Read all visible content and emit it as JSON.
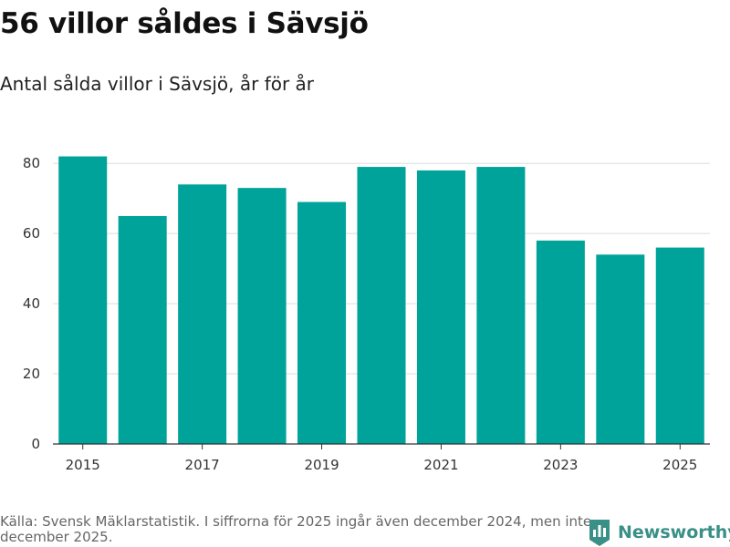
{
  "title": "56 villor såldes i Sävsjö",
  "subtitle": "Antal sålda villor i Sävsjö, år för år",
  "footer": {
    "source": "Källa: Svensk Mäklarstatistik. I siffrorna för 2025 ingår även december 2024, men inte december 2025.",
    "brand": "Newsworthy"
  },
  "colors": {
    "bar": "#00A39A",
    "grid": "#dddddd",
    "brand": "#3a8f87"
  },
  "icons": {
    "brand": "bar-chart-badge-icon"
  },
  "chart_data": {
    "type": "bar",
    "categories": [
      "2015",
      "2016",
      "2017",
      "2018",
      "2019",
      "2020",
      "2021",
      "2022",
      "2023",
      "2024",
      "2025"
    ],
    "values": [
      82,
      65,
      74,
      73,
      69,
      79,
      78,
      79,
      58,
      54,
      56
    ],
    "x_tick_labels": [
      "2015",
      "2017",
      "2019",
      "2021",
      "2023",
      "2025"
    ],
    "y_ticks": [
      0,
      20,
      40,
      60,
      80
    ],
    "ylim": [
      0,
      85
    ],
    "grid": true,
    "legend": "none",
    "title": "56 villor såldes i Sävsjö",
    "subtitle": "Antal sålda villor i Sävsjö, år för år",
    "xlabel": "",
    "ylabel": ""
  }
}
